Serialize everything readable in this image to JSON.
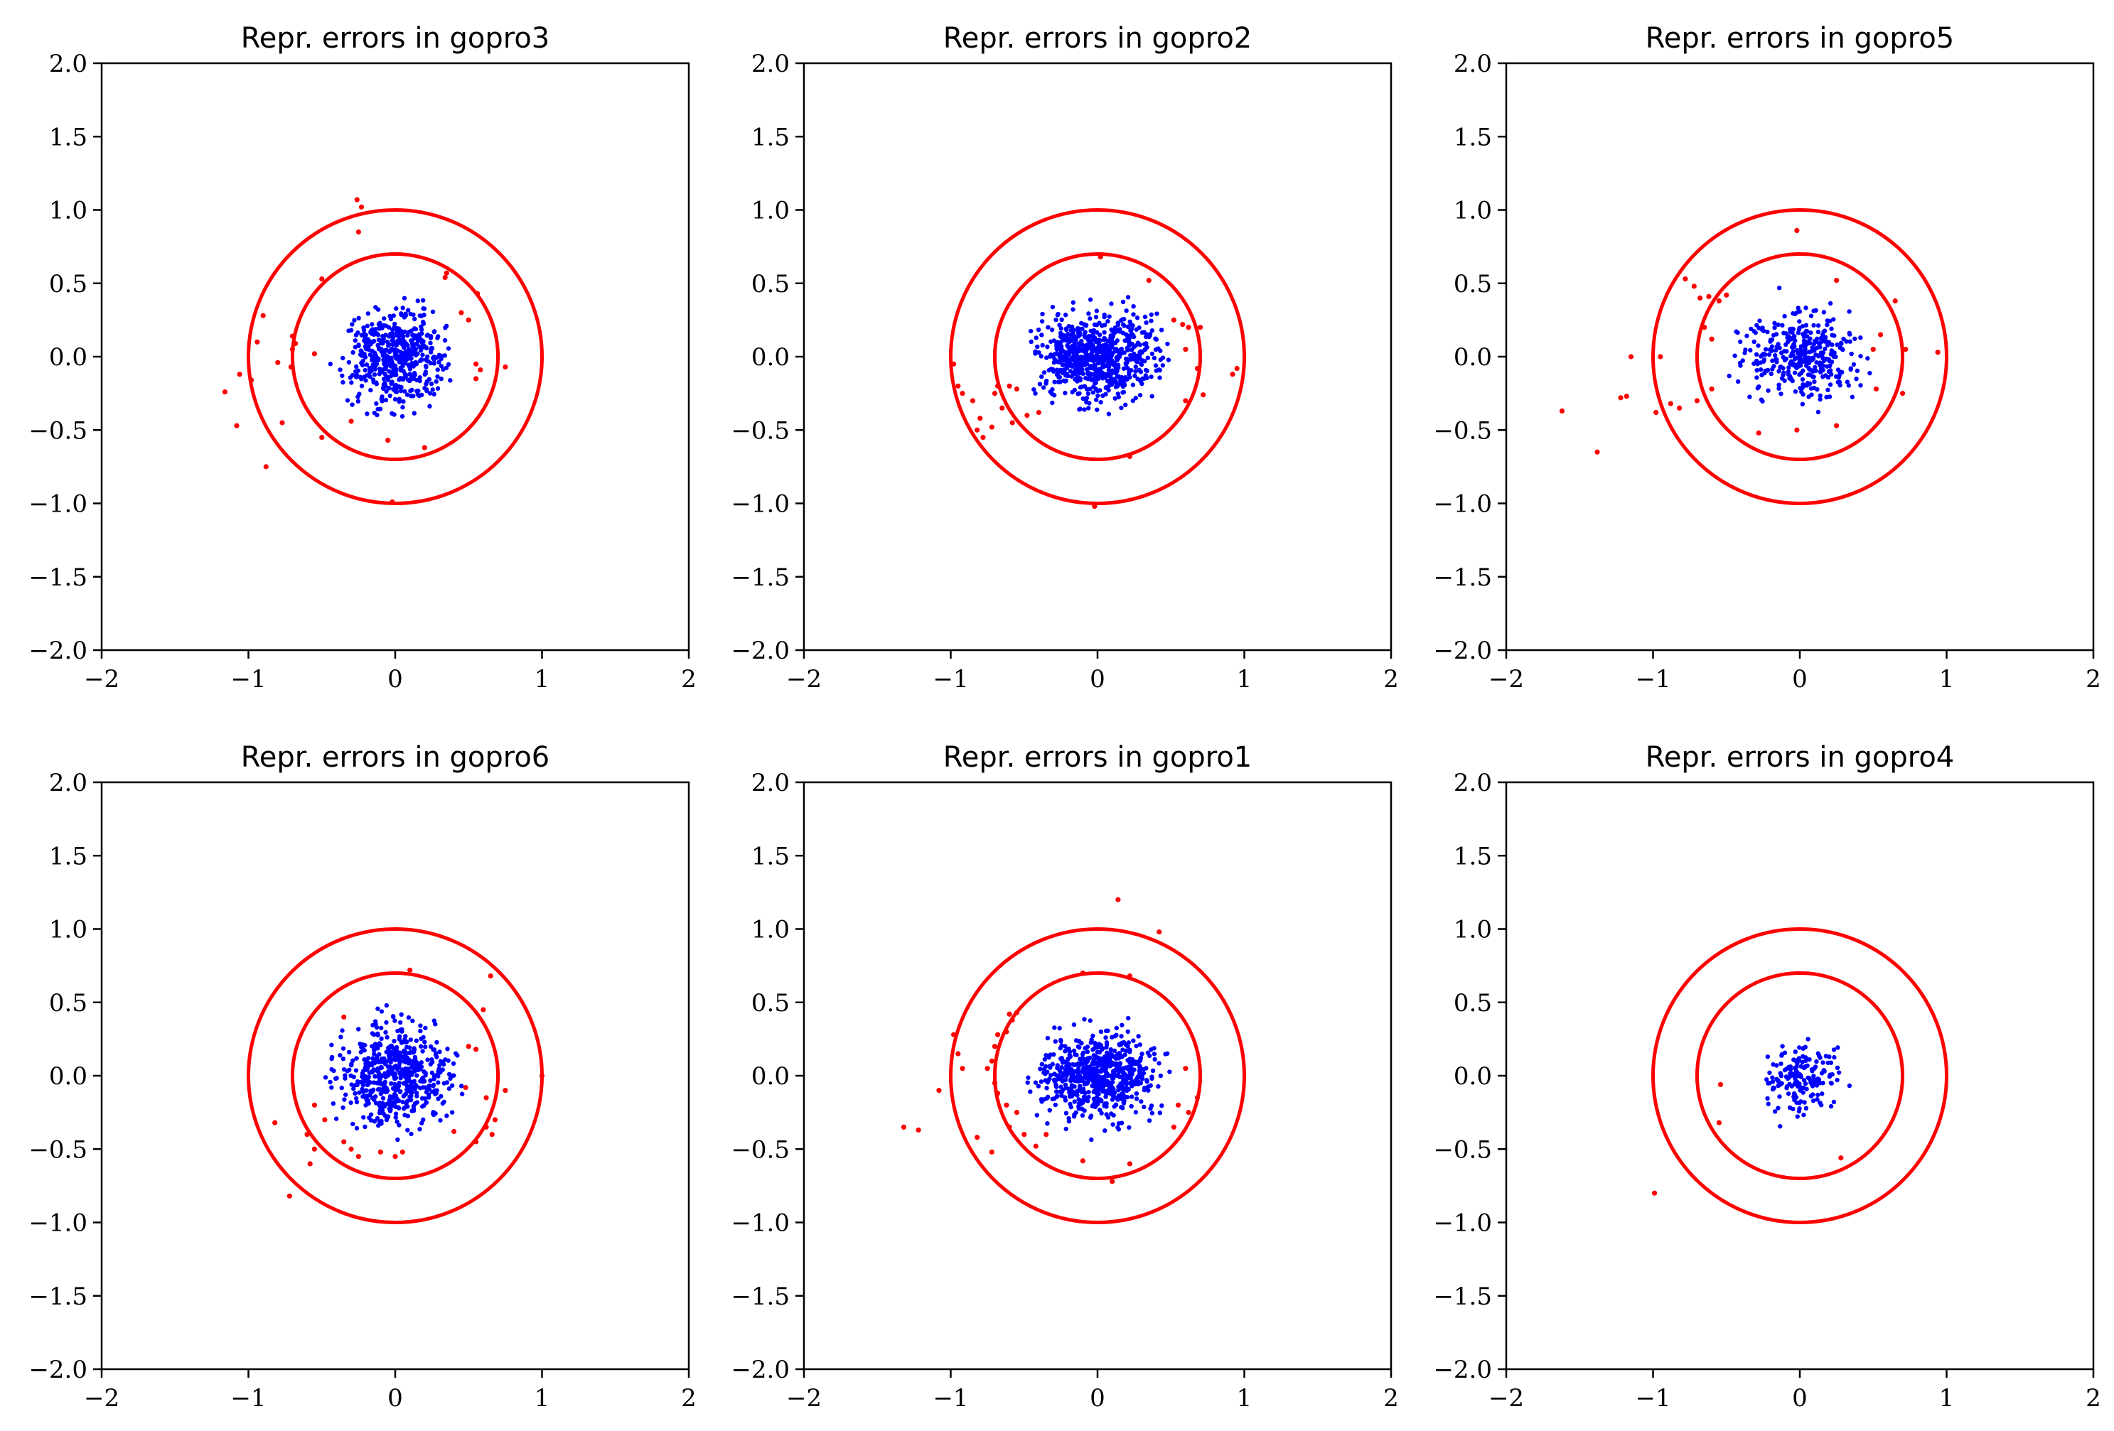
{
  "figure": {
    "colors": {
      "inlier": "#0000ff",
      "outlier": "#ff0000",
      "circle": "#ff0000",
      "axes": "#000000",
      "background": "#ffffff"
    }
  },
  "chart_data": [
    {
      "type": "scatter",
      "title": "Repr. errors in gopro3",
      "xlabel": "",
      "ylabel": "",
      "xlim": [
        -2,
        2
      ],
      "ylim": [
        -2,
        2
      ],
      "xticks": [
        "−2",
        "−1",
        "0",
        "1",
        "2"
      ],
      "yticks": [
        "−2.0",
        "−1.5",
        "−1.0",
        "−0.5",
        "0.0",
        "0.5",
        "1.0",
        "1.5",
        "2.0"
      ],
      "circles": [
        0.7,
        1.0
      ],
      "inlier_cloud": {
        "count": 520,
        "sx": 0.17,
        "sy": 0.16,
        "max_r": 0.45,
        "seed": 3
      },
      "outliers": [
        [
          -0.26,
          1.07
        ],
        [
          -0.23,
          1.02
        ],
        [
          -0.25,
          0.85
        ],
        [
          0.35,
          0.57
        ],
        [
          0.34,
          0.54
        ],
        [
          0.56,
          0.43
        ],
        [
          -0.5,
          0.53
        ],
        [
          -0.9,
          0.28
        ],
        [
          -0.94,
          0.1
        ],
        [
          -0.7,
          0.14
        ],
        [
          -0.68,
          0.09
        ],
        [
          -0.7,
          0.05
        ],
        [
          -0.55,
          0.02
        ],
        [
          -0.8,
          -0.04
        ],
        [
          -0.71,
          -0.07
        ],
        [
          -1.06,
          -0.12
        ],
        [
          -0.98,
          -0.16
        ],
        [
          -1.16,
          -0.24
        ],
        [
          -1.08,
          -0.47
        ],
        [
          -0.77,
          -0.45
        ],
        [
          -0.88,
          -0.75
        ],
        [
          -0.5,
          -0.55
        ],
        [
          -0.02,
          -0.99
        ],
        [
          0.2,
          -0.62
        ],
        [
          -0.05,
          -0.57
        ],
        [
          0.5,
          0.25
        ],
        [
          0.55,
          -0.05
        ],
        [
          0.58,
          -0.09
        ],
        [
          0.75,
          -0.07
        ],
        [
          0.55,
          -0.15
        ],
        [
          0.45,
          0.3
        ],
        [
          -0.3,
          -0.44
        ]
      ]
    },
    {
      "type": "scatter",
      "title": "Repr. errors in gopro2",
      "xlabel": "",
      "ylabel": "",
      "xlim": [
        -2,
        2
      ],
      "ylim": [
        -2,
        2
      ],
      "xticks": [
        "−2",
        "−1",
        "0",
        "1",
        "2"
      ],
      "yticks": [
        "−2.0",
        "−1.5",
        "−1.0",
        "−0.5",
        "0.0",
        "0.5",
        "1.0",
        "1.5",
        "2.0"
      ],
      "circles": [
        0.7,
        1.0
      ],
      "inlier_cloud": {
        "count": 720,
        "sx": 0.21,
        "sy": 0.14,
        "max_r": 0.5,
        "seed": 2
      },
      "outliers": [
        [
          0.02,
          0.68
        ],
        [
          0.35,
          0.52
        ],
        [
          0.52,
          0.25
        ],
        [
          0.58,
          0.22
        ],
        [
          0.62,
          0.2
        ],
        [
          0.6,
          0.05
        ],
        [
          0.7,
          0.2
        ],
        [
          0.68,
          -0.08
        ],
        [
          0.95,
          -0.08
        ],
        [
          0.92,
          -0.12
        ],
        [
          0.72,
          -0.26
        ],
        [
          0.6,
          -0.3
        ],
        [
          -0.98,
          -0.05
        ],
        [
          -0.95,
          -0.2
        ],
        [
          -0.92,
          -0.25
        ],
        [
          -0.85,
          -0.3
        ],
        [
          -0.8,
          -0.42
        ],
        [
          -0.82,
          -0.5
        ],
        [
          -0.78,
          -0.55
        ],
        [
          -0.72,
          -0.48
        ],
        [
          -0.65,
          -0.35
        ],
        [
          -0.6,
          -0.2
        ],
        [
          -0.55,
          -0.22
        ],
        [
          -0.58,
          -0.45
        ],
        [
          -0.68,
          -0.2
        ],
        [
          -0.48,
          -0.4
        ],
        [
          -0.4,
          -0.38
        ],
        [
          -0.02,
          -1.02
        ],
        [
          0.22,
          -0.68
        ],
        [
          -0.7,
          -0.25
        ]
      ]
    },
    {
      "type": "scatter",
      "title": "Repr. errors in gopro5",
      "xlabel": "",
      "ylabel": "",
      "xlim": [
        -2,
        2
      ],
      "ylim": [
        -2,
        2
      ],
      "xticks": [
        "−2",
        "−1",
        "0",
        "1",
        "2"
      ],
      "yticks": [
        "−2.0",
        "−1.5",
        "−1.0",
        "−0.5",
        "0.0",
        "0.5",
        "1.0",
        "1.5",
        "2.0"
      ],
      "circles": [
        0.7,
        1.0
      ],
      "inlier_cloud": {
        "count": 360,
        "sx": 0.2,
        "sy": 0.15,
        "max_r": 0.5,
        "seed": 5
      },
      "outliers": [
        [
          -0.02,
          0.86
        ],
        [
          0.25,
          0.52
        ],
        [
          0.65,
          0.38
        ],
        [
          -0.78,
          0.53
        ],
        [
          -0.72,
          0.48
        ],
        [
          -0.68,
          0.4
        ],
        [
          -0.62,
          0.41
        ],
        [
          -0.5,
          0.42
        ],
        [
          -0.55,
          0.38
        ],
        [
          -0.65,
          0.2
        ],
        [
          -0.6,
          0.12
        ],
        [
          -0.95,
          0.0
        ],
        [
          -1.15,
          0.0
        ],
        [
          -1.22,
          -0.28
        ],
        [
          -1.18,
          -0.27
        ],
        [
          -0.98,
          -0.38
        ],
        [
          -0.88,
          -0.32
        ],
        [
          -0.82,
          -0.35
        ],
        [
          -0.7,
          -0.3
        ],
        [
          -0.6,
          -0.22
        ],
        [
          -1.62,
          -0.37
        ],
        [
          -1.38,
          -0.65
        ],
        [
          -0.28,
          -0.52
        ],
        [
          -0.02,
          -0.5
        ],
        [
          0.25,
          -0.47
        ],
        [
          0.7,
          -0.25
        ],
        [
          0.52,
          -0.22
        ],
        [
          0.72,
          0.05
        ],
        [
          0.94,
          0.03
        ],
        [
          0.5,
          0.05
        ],
        [
          0.55,
          0.15
        ]
      ]
    },
    {
      "type": "scatter",
      "title": "Repr. errors in gopro6",
      "xlabel": "",
      "ylabel": "",
      "xlim": [
        -2,
        2
      ],
      "ylim": [
        -2,
        2
      ],
      "xticks": [
        "−2",
        "−1",
        "0",
        "1",
        "2"
      ],
      "yticks": [
        "−2.0",
        "−1.5",
        "−1.0",
        "−0.5",
        "0.0",
        "0.5",
        "1.0",
        "1.5",
        "2.0"
      ],
      "circles": [
        0.7,
        1.0
      ],
      "inlier_cloud": {
        "count": 560,
        "sx": 0.2,
        "sy": 0.17,
        "max_r": 0.5,
        "seed": 6
      },
      "outliers": [
        [
          0.1,
          0.72
        ],
        [
          0.65,
          0.68
        ],
        [
          0.6,
          0.45
        ],
        [
          -0.35,
          0.4
        ],
        [
          0.5,
          0.2
        ],
        [
          0.55,
          0.18
        ],
        [
          0.48,
          -0.08
        ],
        [
          0.62,
          -0.15
        ],
        [
          0.75,
          -0.1
        ],
        [
          1.0,
          0.0
        ],
        [
          0.68,
          -0.3
        ],
        [
          0.62,
          -0.35
        ],
        [
          0.66,
          -0.4
        ],
        [
          0.55,
          -0.45
        ],
        [
          0.4,
          -0.38
        ],
        [
          -0.55,
          -0.2
        ],
        [
          -0.48,
          -0.3
        ],
        [
          -0.6,
          -0.4
        ],
        [
          -0.55,
          -0.5
        ],
        [
          -0.58,
          -0.6
        ],
        [
          -0.72,
          -0.82
        ],
        [
          -0.82,
          -0.32
        ],
        [
          -0.3,
          -0.5
        ],
        [
          -0.25,
          -0.55
        ],
        [
          0.0,
          -0.55
        ],
        [
          0.05,
          -0.52
        ],
        [
          -0.1,
          -0.52
        ],
        [
          -0.35,
          -0.45
        ]
      ]
    },
    {
      "type": "scatter",
      "title": "Repr. errors in gopro1",
      "xlabel": "",
      "ylabel": "",
      "xlim": [
        -2,
        2
      ],
      "ylim": [
        -2,
        2
      ],
      "xticks": [
        "−2",
        "−1",
        "0",
        "1",
        "2"
      ],
      "yticks": [
        "−2.0",
        "−1.5",
        "−1.0",
        "−0.5",
        "0.0",
        "0.5",
        "1.0",
        "1.5",
        "2.0"
      ],
      "circles": [
        0.7,
        1.0
      ],
      "inlier_cloud": {
        "count": 680,
        "sx": 0.2,
        "sy": 0.14,
        "max_r": 0.5,
        "seed": 1
      },
      "outliers": [
        [
          0.14,
          1.2
        ],
        [
          0.42,
          0.98
        ],
        [
          -0.1,
          0.7
        ],
        [
          0.22,
          0.68
        ],
        [
          -0.6,
          0.42
        ],
        [
          -0.55,
          0.43
        ],
        [
          -0.58,
          0.38
        ],
        [
          -0.62,
          0.3
        ],
        [
          -0.68,
          0.28
        ],
        [
          -0.7,
          0.2
        ],
        [
          -0.72,
          0.1
        ],
        [
          -0.75,
          0.05
        ],
        [
          -0.7,
          -0.05
        ],
        [
          -0.68,
          -0.12
        ],
        [
          -0.62,
          -0.2
        ],
        [
          -0.55,
          -0.25
        ],
        [
          -0.6,
          -0.35
        ],
        [
          -0.5,
          -0.4
        ],
        [
          -0.42,
          -0.48
        ],
        [
          -0.35,
          -0.4
        ],
        [
          -0.98,
          0.28
        ],
        [
          -0.95,
          0.15
        ],
        [
          -0.92,
          0.05
        ],
        [
          -1.32,
          -0.35
        ],
        [
          -1.22,
          -0.37
        ],
        [
          -1.08,
          -0.1
        ],
        [
          -0.82,
          -0.42
        ],
        [
          -0.72,
          -0.52
        ],
        [
          0.55,
          -0.2
        ],
        [
          0.62,
          -0.25
        ],
        [
          0.68,
          -0.15
        ],
        [
          0.6,
          0.05
        ],
        [
          0.52,
          -0.35
        ],
        [
          0.1,
          -0.72
        ],
        [
          0.22,
          -0.6
        ],
        [
          -0.1,
          -0.58
        ]
      ]
    },
    {
      "type": "scatter",
      "title": "Repr. errors in gopro4",
      "xlabel": "",
      "ylabel": "",
      "xlim": [
        -2,
        2
      ],
      "ylim": [
        -2,
        2
      ],
      "xticks": [
        "−2",
        "−1",
        "0",
        "1",
        "2"
      ],
      "yticks": [
        "−2.0",
        "−1.5",
        "−1.0",
        "−0.5",
        "0.0",
        "0.5",
        "1.0",
        "1.5",
        "2.0"
      ],
      "circles": [
        0.7,
        1.0
      ],
      "inlier_cloud": {
        "count": 170,
        "sx": 0.12,
        "sy": 0.11,
        "max_r": 0.38,
        "seed": 4
      },
      "outliers": [
        [
          -0.54,
          -0.06
        ],
        [
          -0.55,
          -0.32
        ],
        [
          0.28,
          -0.56
        ],
        [
          -0.99,
          -0.8
        ]
      ]
    }
  ]
}
